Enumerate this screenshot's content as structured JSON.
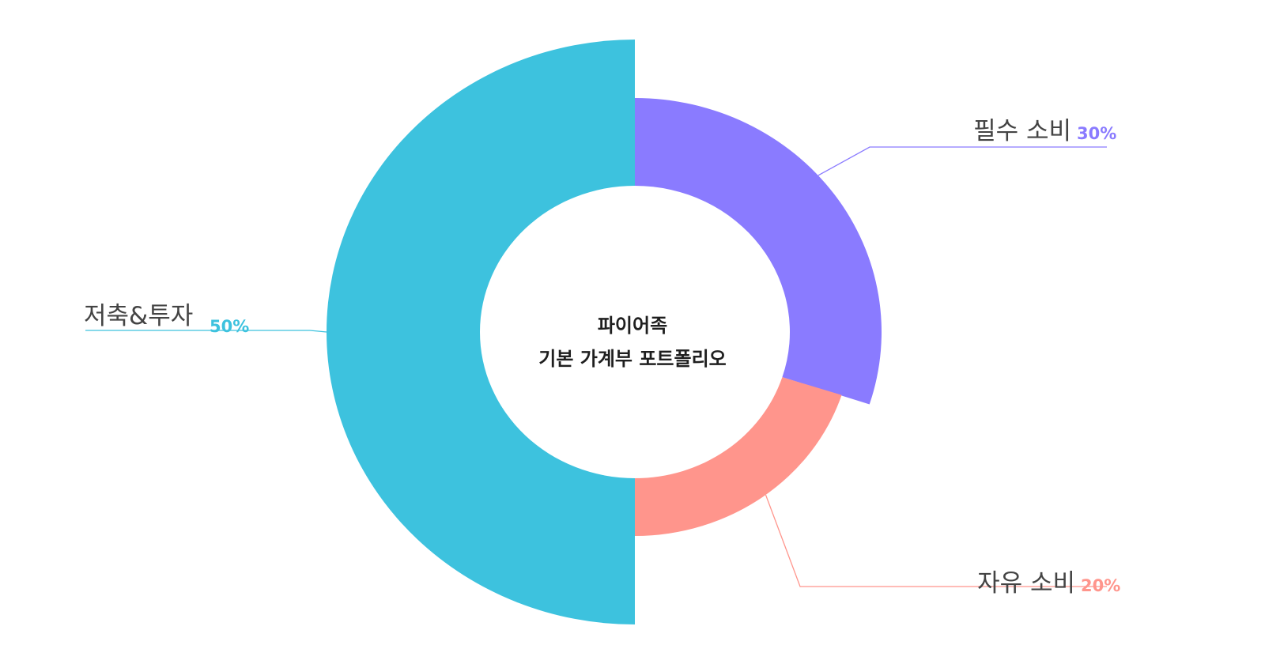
{
  "chart_data": {
    "type": "pie",
    "variant": "variable-radius-donut",
    "center_text": [
      "파이어족",
      "기본  가계부 포트폴리오"
    ],
    "slices": [
      {
        "name": "필수 소비",
        "value": 30,
        "percent_label": "30%",
        "color": "#8A7BFF"
      },
      {
        "name": "자유 소비",
        "value": 20,
        "percent_label": "20%",
        "color": "#FF958C"
      },
      {
        "name": "저축&투자",
        "value": 50,
        "percent_label": "50%",
        "color": "#3DC2DE"
      }
    ],
    "legend": "none"
  }
}
